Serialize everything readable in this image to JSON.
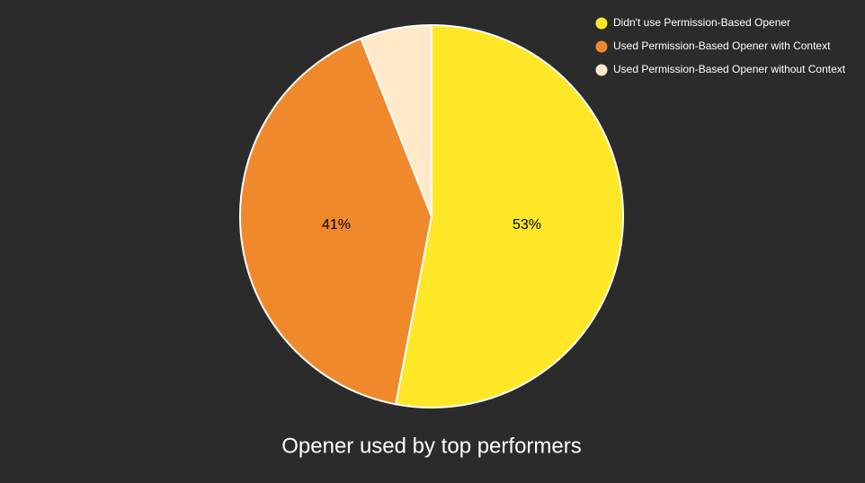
{
  "chart_data": {
    "type": "pie",
    "title": "Opener used by top performers",
    "categories": [
      "Didn't use Permission-Based Opener",
      "Used Permission-Based Opener with Context",
      "Used Permission-Based Opener without Context"
    ],
    "values": [
      53,
      41,
      6
    ],
    "value_labels": [
      "53%",
      "41%",
      null
    ],
    "colors": [
      "#fee726",
      "#f0892c",
      "#ffe9c9"
    ],
    "legend": "top-right"
  }
}
